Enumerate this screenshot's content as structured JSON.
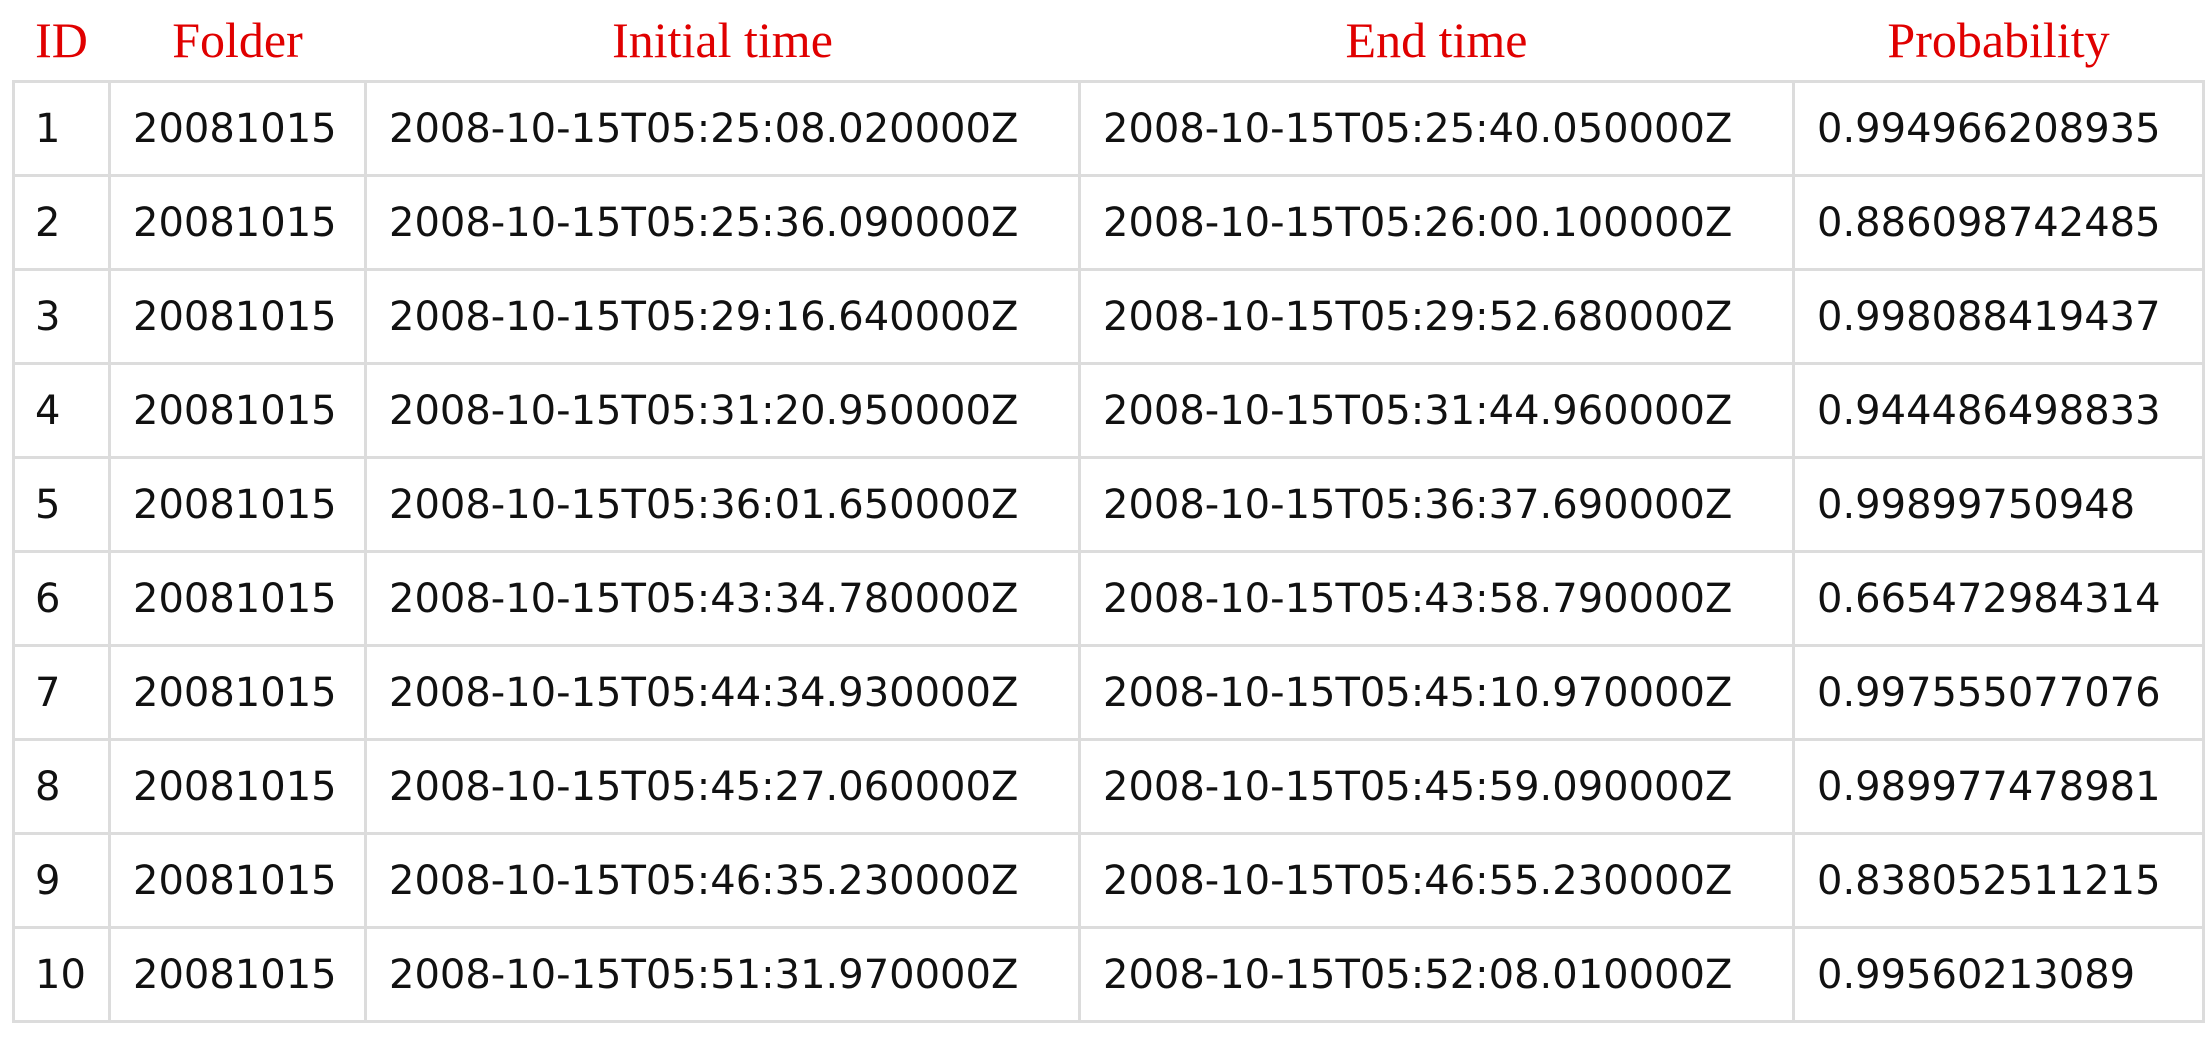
{
  "table": {
    "headers": [
      "ID",
      "Folder",
      "Initial time",
      "End time",
      "Probability"
    ],
    "rows": [
      [
        "1",
        "20081015",
        "2008-10-15T05:25:08.020000Z",
        "2008-10-15T05:25:40.050000Z",
        "0.994966208935"
      ],
      [
        "2",
        "20081015",
        "2008-10-15T05:25:36.090000Z",
        "2008-10-15T05:26:00.100000Z",
        "0.886098742485"
      ],
      [
        "3",
        "20081015",
        "2008-10-15T05:29:16.640000Z",
        "2008-10-15T05:29:52.680000Z",
        "0.998088419437"
      ],
      [
        "4",
        "20081015",
        "2008-10-15T05:31:20.950000Z",
        "2008-10-15T05:31:44.960000Z",
        "0.944486498833"
      ],
      [
        "5",
        "20081015",
        "2008-10-15T05:36:01.650000Z",
        "2008-10-15T05:36:37.690000Z",
        "0.99899750948"
      ],
      [
        "6",
        "20081015",
        "2008-10-15T05:43:34.780000Z",
        "2008-10-15T05:43:58.790000Z",
        "0.665472984314"
      ],
      [
        "7",
        "20081015",
        "2008-10-15T05:44:34.930000Z",
        "2008-10-15T05:45:10.970000Z",
        "0.997555077076"
      ],
      [
        "8",
        "20081015",
        "2008-10-15T05:45:27.060000Z",
        "2008-10-15T05:45:59.090000Z",
        "0.989977478981"
      ],
      [
        "9",
        "20081015",
        "2008-10-15T05:46:35.230000Z",
        "2008-10-15T05:46:55.230000Z",
        "0.838052511215"
      ],
      [
        "10",
        "20081015",
        "2008-10-15T05:51:31.970000Z",
        "2008-10-15T05:52:08.010000Z",
        "0.99560213089"
      ]
    ]
  },
  "colors": {
    "header_text": "#e00000",
    "cell_text": "#111111",
    "grid": "#dcdcdc"
  }
}
